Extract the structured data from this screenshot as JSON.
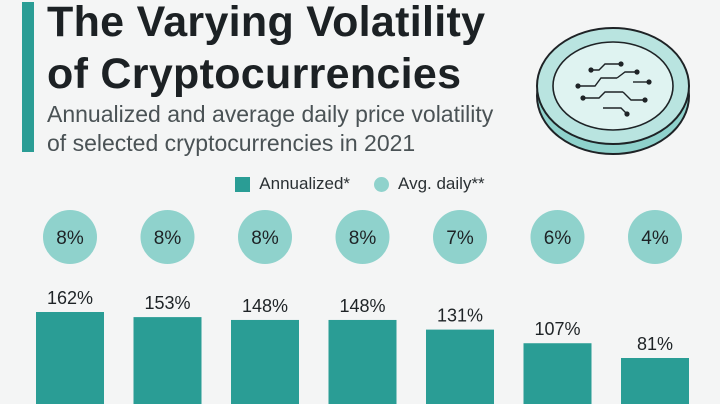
{
  "header": {
    "title_line1": "The Varying Volatility",
    "title_line2": "of Cryptocurrencies",
    "subtitle_line1": "Annualized and average daily price volatility",
    "subtitle_line2": "of selected cryptocurrencies in 2021"
  },
  "legend": {
    "annualized": "Annualized*",
    "avg_daily": "Avg. daily**"
  },
  "colors": {
    "accent": "#2a9d95",
    "bar": "#2a9d95",
    "circle": "#8fd2cc",
    "text": "#1e2326"
  },
  "chart_data": {
    "type": "bar",
    "title": "The Varying Volatility of Cryptocurrencies",
    "categories": [
      "",
      "",
      "",
      "",
      "",
      "",
      ""
    ],
    "series": [
      {
        "name": "Annualized*",
        "values": [
          162,
          153,
          148,
          148,
          131,
          107,
          81
        ],
        "labels": [
          "162%",
          "153%",
          "148%",
          "148%",
          "131%",
          "107%",
          "81%"
        ]
      },
      {
        "name": "Avg. daily**",
        "values": [
          8,
          8,
          8,
          8,
          7,
          6,
          4
        ],
        "labels": [
          "8%",
          "8%",
          "8%",
          "8%",
          "7%",
          "6%",
          "4%"
        ]
      }
    ],
    "unit": "%",
    "grid": false,
    "legend_position": "top-center"
  }
}
